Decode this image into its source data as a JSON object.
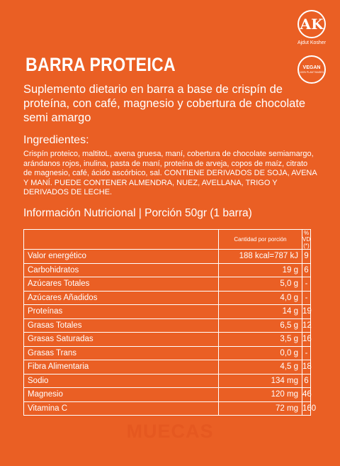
{
  "certifications": {
    "kosher_mark": "AK",
    "kosher_label": "Ajdut Kosher",
    "vegan_title": "VEGAN",
    "vegan_sub": "100% PLANT BASED"
  },
  "product": {
    "title": "BARRA PROTEICA",
    "description": "Suplemento dietario en barra a base de crispín de proteína, con café, magnesio y cobertura de chocolate semi amargo"
  },
  "ingredients": {
    "title": "Ingredientes:",
    "text": "Crispín proteico, maltitoL, avena gruesa, maní, cobertura de chocolate semiamargo, arándanos rojos, inulina, pasta de maní, proteína de arveja, copos de maíz, citrato de magnesio, café, ácido ascórbico, sal. CONTIENE DERIVADOS DE SOJA, AVENA Y MANÍ. PUEDE CONTENER ALMENDRA, NUEZ, AVELLANA, TRIGO Y DERIVADOS DE LECHE."
  },
  "nutrition": {
    "title": "Información Nutricional | Porción 50gr (1 barra)",
    "headers": {
      "category": "",
      "quantity": "Cantidad por porción",
      "vd": "% VD (*)"
    },
    "rows": [
      {
        "name": "Valor energético",
        "qty": "188 kcal=787 kJ",
        "vd": "9"
      },
      {
        "name": "Carbohidratos",
        "qty": "19 g",
        "vd": "6"
      },
      {
        "name": "Azúcares Totales",
        "qty": "5,0 g",
        "vd": "-"
      },
      {
        "name": "Azúcares Añadidos",
        "qty": "4,0 g",
        "vd": "-"
      },
      {
        "name": "Proteínas",
        "qty": "14 g",
        "vd": "19"
      },
      {
        "name": "Grasas Totales",
        "qty": "6,5 g",
        "vd": "12"
      },
      {
        "name": "Grasas Saturadas",
        "qty": "3,5 g",
        "vd": "16"
      },
      {
        "name": "Grasas Trans",
        "qty": "0,0 g",
        "vd": "-"
      },
      {
        "name": "Fibra Alimentaria",
        "qty": "4,5 g",
        "vd": "18"
      },
      {
        "name": "Sodio",
        "qty": "134 mg",
        "vd": "6"
      },
      {
        "name": "Magnesio",
        "qty": "120 mg",
        "vd": "46"
      },
      {
        "name": "Vitamina C",
        "qty": "72 mg",
        "vd": "160"
      }
    ]
  },
  "brand": "MUECAS"
}
